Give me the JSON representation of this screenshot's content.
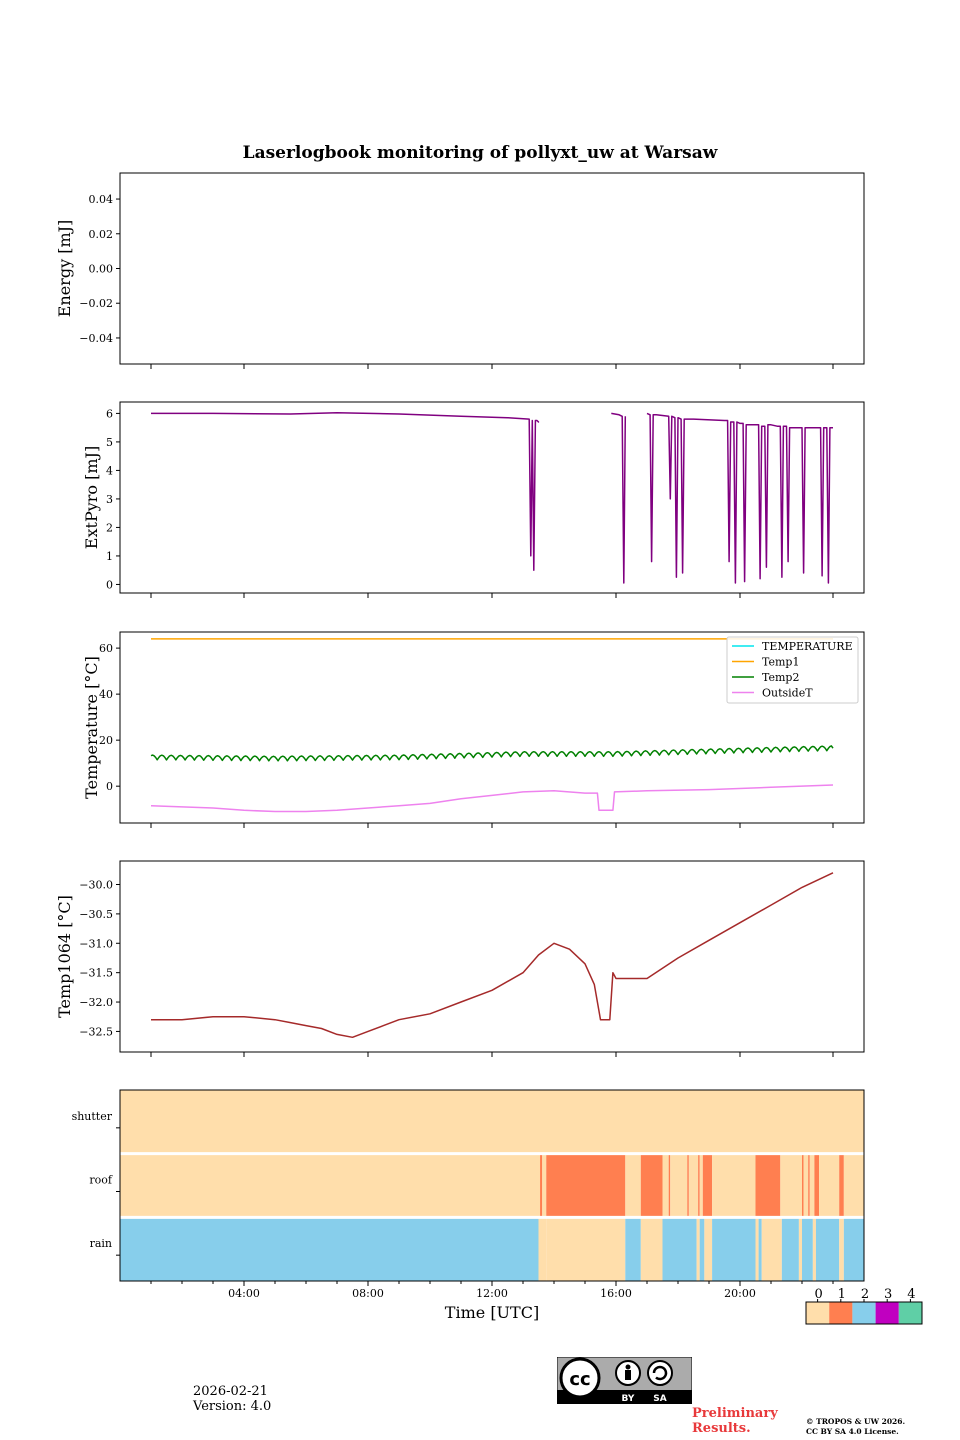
{
  "chart_data": {
    "type": "line",
    "title": "Laserlogbook monitoring of pollyxt_uw at Warsaw",
    "xlabel": "Time [UTC]",
    "x_range_hours": [
      0,
      24
    ],
    "x_ticks": [
      {
        "hour": 4,
        "label": "04:00"
      },
      {
        "hour": 8,
        "label": "08:00"
      },
      {
        "hour": 12,
        "label": "12:00"
      },
      {
        "hour": 16,
        "label": "16:00"
      },
      {
        "hour": 20,
        "label": "20:00"
      }
    ],
    "panels": [
      {
        "id": "energy",
        "ylabel": "Energy [mJ]",
        "ylim": [
          -0.055,
          0.055
        ],
        "yticks": [
          0.04,
          0.02,
          0.0,
          -0.02,
          -0.04
        ],
        "ytick_labels": [
          "0.04",
          "0.02",
          "0.00",
          "−0.02",
          "−0.04"
        ],
        "series": []
      },
      {
        "id": "extpyro",
        "ylabel": "ExtPyro [mJ]",
        "ylim": [
          -0.3,
          6.4
        ],
        "yticks": [
          0,
          1,
          2,
          3,
          4,
          5,
          6
        ],
        "ytick_labels": [
          "0",
          "1",
          "2",
          "3",
          "4",
          "5",
          "6"
        ],
        "series": [
          {
            "name": "ExtPyro",
            "color": "#800080",
            "segments": [
              {
                "x": [
                  1.0,
                  3.0,
                  5.5,
                  7.0,
                  9.0,
                  11.0,
                  12.5,
                  13.2,
                  13.25,
                  13.3,
                  13.35,
                  13.4,
                  13.45,
                  13.5,
                  13.52
                ],
                "y": [
                  6.0,
                  6.0,
                  5.98,
                  6.02,
                  5.98,
                  5.9,
                  5.85,
                  5.8,
                  1.0,
                  5.75,
                  0.5,
                  5.75,
                  5.75,
                  5.7,
                  5.7
                ]
              },
              {
                "x": [
                  15.85,
                  16.1,
                  16.2,
                  16.25,
                  16.3
                ],
                "y": [
                  6.0,
                  5.95,
                  5.9,
                  0.05,
                  5.9
                ]
              },
              {
                "x": [
                  17.0,
                  17.1,
                  17.15,
                  17.2,
                  17.3,
                  17.7,
                  17.75,
                  17.8,
                  17.9,
                  17.95,
                  18.0,
                  18.1,
                  18.15,
                  18.2,
                  18.3,
                  18.5,
                  19.5,
                  19.6,
                  19.65,
                  19.7,
                  19.8,
                  19.85,
                  19.9,
                  20.0,
                  20.1,
                  20.15,
                  20.2,
                  20.5,
                  20.6,
                  20.65,
                  20.7,
                  20.8,
                  20.85,
                  20.9,
                  21.0,
                  21.2,
                  21.3,
                  21.35,
                  21.4,
                  21.5,
                  21.55,
                  21.6,
                  21.7,
                  22.0,
                  22.05,
                  22.1,
                  22.2,
                  22.5,
                  22.6,
                  22.65,
                  22.7,
                  22.8,
                  22.85,
                  22.9,
                  23.0
                ],
                "y": [
                  6.0,
                  5.95,
                  0.8,
                  5.95,
                  5.95,
                  5.9,
                  3.0,
                  5.9,
                  5.85,
                  0.25,
                  5.85,
                  5.8,
                  0.4,
                  5.8,
                  5.8,
                  5.8,
                  5.75,
                  5.75,
                  0.8,
                  5.7,
                  5.7,
                  0.05,
                  5.7,
                  5.65,
                  5.65,
                  0.1,
                  5.6,
                  5.6,
                  5.6,
                  0.2,
                  5.55,
                  5.55,
                  0.6,
                  5.6,
                  5.6,
                  5.55,
                  5.55,
                  0.25,
                  5.55,
                  5.55,
                  0.8,
                  5.5,
                  5.5,
                  5.5,
                  0.4,
                  5.5,
                  5.5,
                  5.5,
                  5.5,
                  0.3,
                  5.5,
                  5.5,
                  0.05,
                  5.5,
                  5.5
                ]
              }
            ]
          }
        ]
      },
      {
        "id": "temperature",
        "ylabel": "Temperature [°C]",
        "ylim": [
          -16,
          67
        ],
        "yticks": [
          0,
          20,
          40,
          60
        ],
        "ytick_labels": [
          "0",
          "20",
          "40",
          "60"
        ],
        "legend_position": "top-right",
        "series": [
          {
            "name": "TEMPERATURE",
            "color": "#00e5ee",
            "x": [],
            "y": []
          },
          {
            "name": "Temp1",
            "color": "#ffa500",
            "x": [
              1,
              23
            ],
            "y": [
              64,
              64
            ]
          },
          {
            "name": "Temp2",
            "color": "#008000",
            "x": [
              1,
              5,
              9,
              13,
              16,
              20,
              23
            ],
            "y": [
              12.5,
              12.0,
              12.5,
              14.0,
              14.0,
              15.5,
              16.5
            ],
            "amplitude": 2.0,
            "period_hours": 0.3
          },
          {
            "name": "OutsideT",
            "color": "#ee82ee",
            "x": [
              1,
              2,
              3,
              4,
              5,
              6,
              7,
              8,
              9,
              10,
              11,
              12,
              13,
              14,
              15,
              15.4,
              15.45,
              15.9,
              15.95,
              17,
              19,
              21,
              23
            ],
            "y": [
              -8.5,
              -9.0,
              -9.5,
              -10.5,
              -11.0,
              -11.0,
              -10.5,
              -9.5,
              -8.5,
              -7.5,
              -5.5,
              -4.0,
              -2.5,
              -2.0,
              -3.0,
              -3.0,
              -10.5,
              -10.5,
              -2.5,
              -2.0,
              -1.5,
              -0.5,
              0.5
            ]
          }
        ]
      },
      {
        "id": "temp1064",
        "ylabel": "Temp1064 [°C]",
        "ylim": [
          -32.85,
          -29.6
        ],
        "yticks": [
          -30.0,
          -30.5,
          -31.0,
          -31.5,
          -32.0,
          -32.5
        ],
        "ytick_labels": [
          "−30.0",
          "−30.5",
          "−31.0",
          "−31.5",
          "−32.0",
          "−32.5"
        ],
        "series": [
          {
            "name": "Temp1064",
            "color": "#a52a2a",
            "x": [
              1,
              2,
              3,
              4,
              5,
              5.5,
              6,
              6.5,
              7,
              7.5,
              8,
              8.5,
              9,
              10,
              11,
              12,
              13,
              13.5,
              14,
              14.5,
              15,
              15.3,
              15.5,
              15.8,
              15.9,
              16,
              16.5,
              17,
              18,
              19,
              20,
              21,
              22,
              23
            ],
            "y": [
              -32.3,
              -32.3,
              -32.25,
              -32.25,
              -32.3,
              -32.35,
              -32.4,
              -32.45,
              -32.55,
              -32.6,
              -32.5,
              -32.4,
              -32.3,
              -32.2,
              -32.0,
              -31.8,
              -31.5,
              -31.2,
              -31.0,
              -31.1,
              -31.35,
              -31.7,
              -32.3,
              -32.3,
              -31.5,
              -31.6,
              -31.6,
              -31.6,
              -31.25,
              -30.95,
              -30.65,
              -30.35,
              -30.05,
              -29.8
            ]
          }
        ]
      },
      {
        "id": "status",
        "type": "heatmap",
        "rows": [
          "shutter",
          "roof",
          "rain"
        ],
        "colorbar": {
          "labels": [
            "0",
            "1",
            "2",
            "3",
            "4"
          ],
          "colors": [
            "#ffdeab",
            "#ff7f50",
            "#87ceeb",
            "#c000c0",
            "#5fcfa6"
          ]
        },
        "intervals": {
          "shutter": [
            {
              "start": 0,
              "end": 24,
              "value": 0
            }
          ],
          "roof": [
            {
              "start": 0,
              "end": 13.55,
              "value": 0
            },
            {
              "start": 13.55,
              "end": 13.62,
              "value": 1
            },
            {
              "start": 13.62,
              "end": 13.75,
              "value": 0
            },
            {
              "start": 13.75,
              "end": 16.3,
              "value": 1
            },
            {
              "start": 16.3,
              "end": 16.8,
              "value": 0
            },
            {
              "start": 16.8,
              "end": 17.5,
              "value": 1
            },
            {
              "start": 17.5,
              "end": 17.7,
              "value": 0
            },
            {
              "start": 17.7,
              "end": 17.75,
              "value": 1
            },
            {
              "start": 17.75,
              "end": 18.3,
              "value": 0
            },
            {
              "start": 18.3,
              "end": 18.35,
              "value": 1
            },
            {
              "start": 18.35,
              "end": 18.65,
              "value": 0
            },
            {
              "start": 18.65,
              "end": 18.7,
              "value": 1
            },
            {
              "start": 18.7,
              "end": 18.8,
              "value": 0
            },
            {
              "start": 18.8,
              "end": 19.1,
              "value": 1
            },
            {
              "start": 19.1,
              "end": 20.5,
              "value": 0
            },
            {
              "start": 20.5,
              "end": 21.3,
              "value": 1
            },
            {
              "start": 21.3,
              "end": 22.0,
              "value": 0
            },
            {
              "start": 22.0,
              "end": 22.05,
              "value": 1
            },
            {
              "start": 22.05,
              "end": 22.2,
              "value": 0
            },
            {
              "start": 22.2,
              "end": 22.25,
              "value": 1
            },
            {
              "start": 22.25,
              "end": 22.4,
              "value": 0
            },
            {
              "start": 22.4,
              "end": 22.55,
              "value": 1
            },
            {
              "start": 22.55,
              "end": 23.2,
              "value": 0
            },
            {
              "start": 23.2,
              "end": 23.35,
              "value": 1
            },
            {
              "start": 23.35,
              "end": 24,
              "value": 0
            }
          ],
          "rain": [
            {
              "start": 0,
              "end": 13.5,
              "value": 2
            },
            {
              "start": 13.5,
              "end": 13.75,
              "value": 0
            },
            {
              "start": 13.75,
              "end": 16.3,
              "value": 0
            },
            {
              "start": 16.3,
              "end": 16.8,
              "value": 2
            },
            {
              "start": 16.8,
              "end": 17.5,
              "value": 0
            },
            {
              "start": 17.5,
              "end": 18.6,
              "value": 2
            },
            {
              "start": 18.6,
              "end": 18.7,
              "value": 0
            },
            {
              "start": 18.7,
              "end": 18.85,
              "value": 2
            },
            {
              "start": 18.85,
              "end": 19.1,
              "value": 0
            },
            {
              "start": 19.1,
              "end": 20.5,
              "value": 2
            },
            {
              "start": 20.5,
              "end": 20.6,
              "value": 0
            },
            {
              "start": 20.6,
              "end": 20.7,
              "value": 2
            },
            {
              "start": 20.7,
              "end": 21.35,
              "value": 0
            },
            {
              "start": 21.35,
              "end": 21.9,
              "value": 2
            },
            {
              "start": 21.9,
              "end": 22.0,
              "value": 0
            },
            {
              "start": 22.0,
              "end": 22.35,
              "value": 2
            },
            {
              "start": 22.35,
              "end": 22.45,
              "value": 0
            },
            {
              "start": 22.45,
              "end": 23.2,
              "value": 2
            },
            {
              "start": 23.2,
              "end": 23.35,
              "value": 0
            },
            {
              "start": 23.35,
              "end": 24,
              "value": 2
            }
          ]
        }
      }
    ]
  },
  "footer": {
    "date": "2026-02-21",
    "version": "Version: 4.0",
    "preliminary_line1": "Preliminary",
    "preliminary_line2": "Results.",
    "copyright_line1": "© TROPOS & UW 2026.",
    "copyright_line2": "CC BY SA 4.0 License.",
    "cc_badge": {
      "by": "BY",
      "sa": "SA",
      "mark": "cc"
    }
  },
  "colors": {
    "axis": "#000000",
    "legend_border": "#cccccc"
  }
}
